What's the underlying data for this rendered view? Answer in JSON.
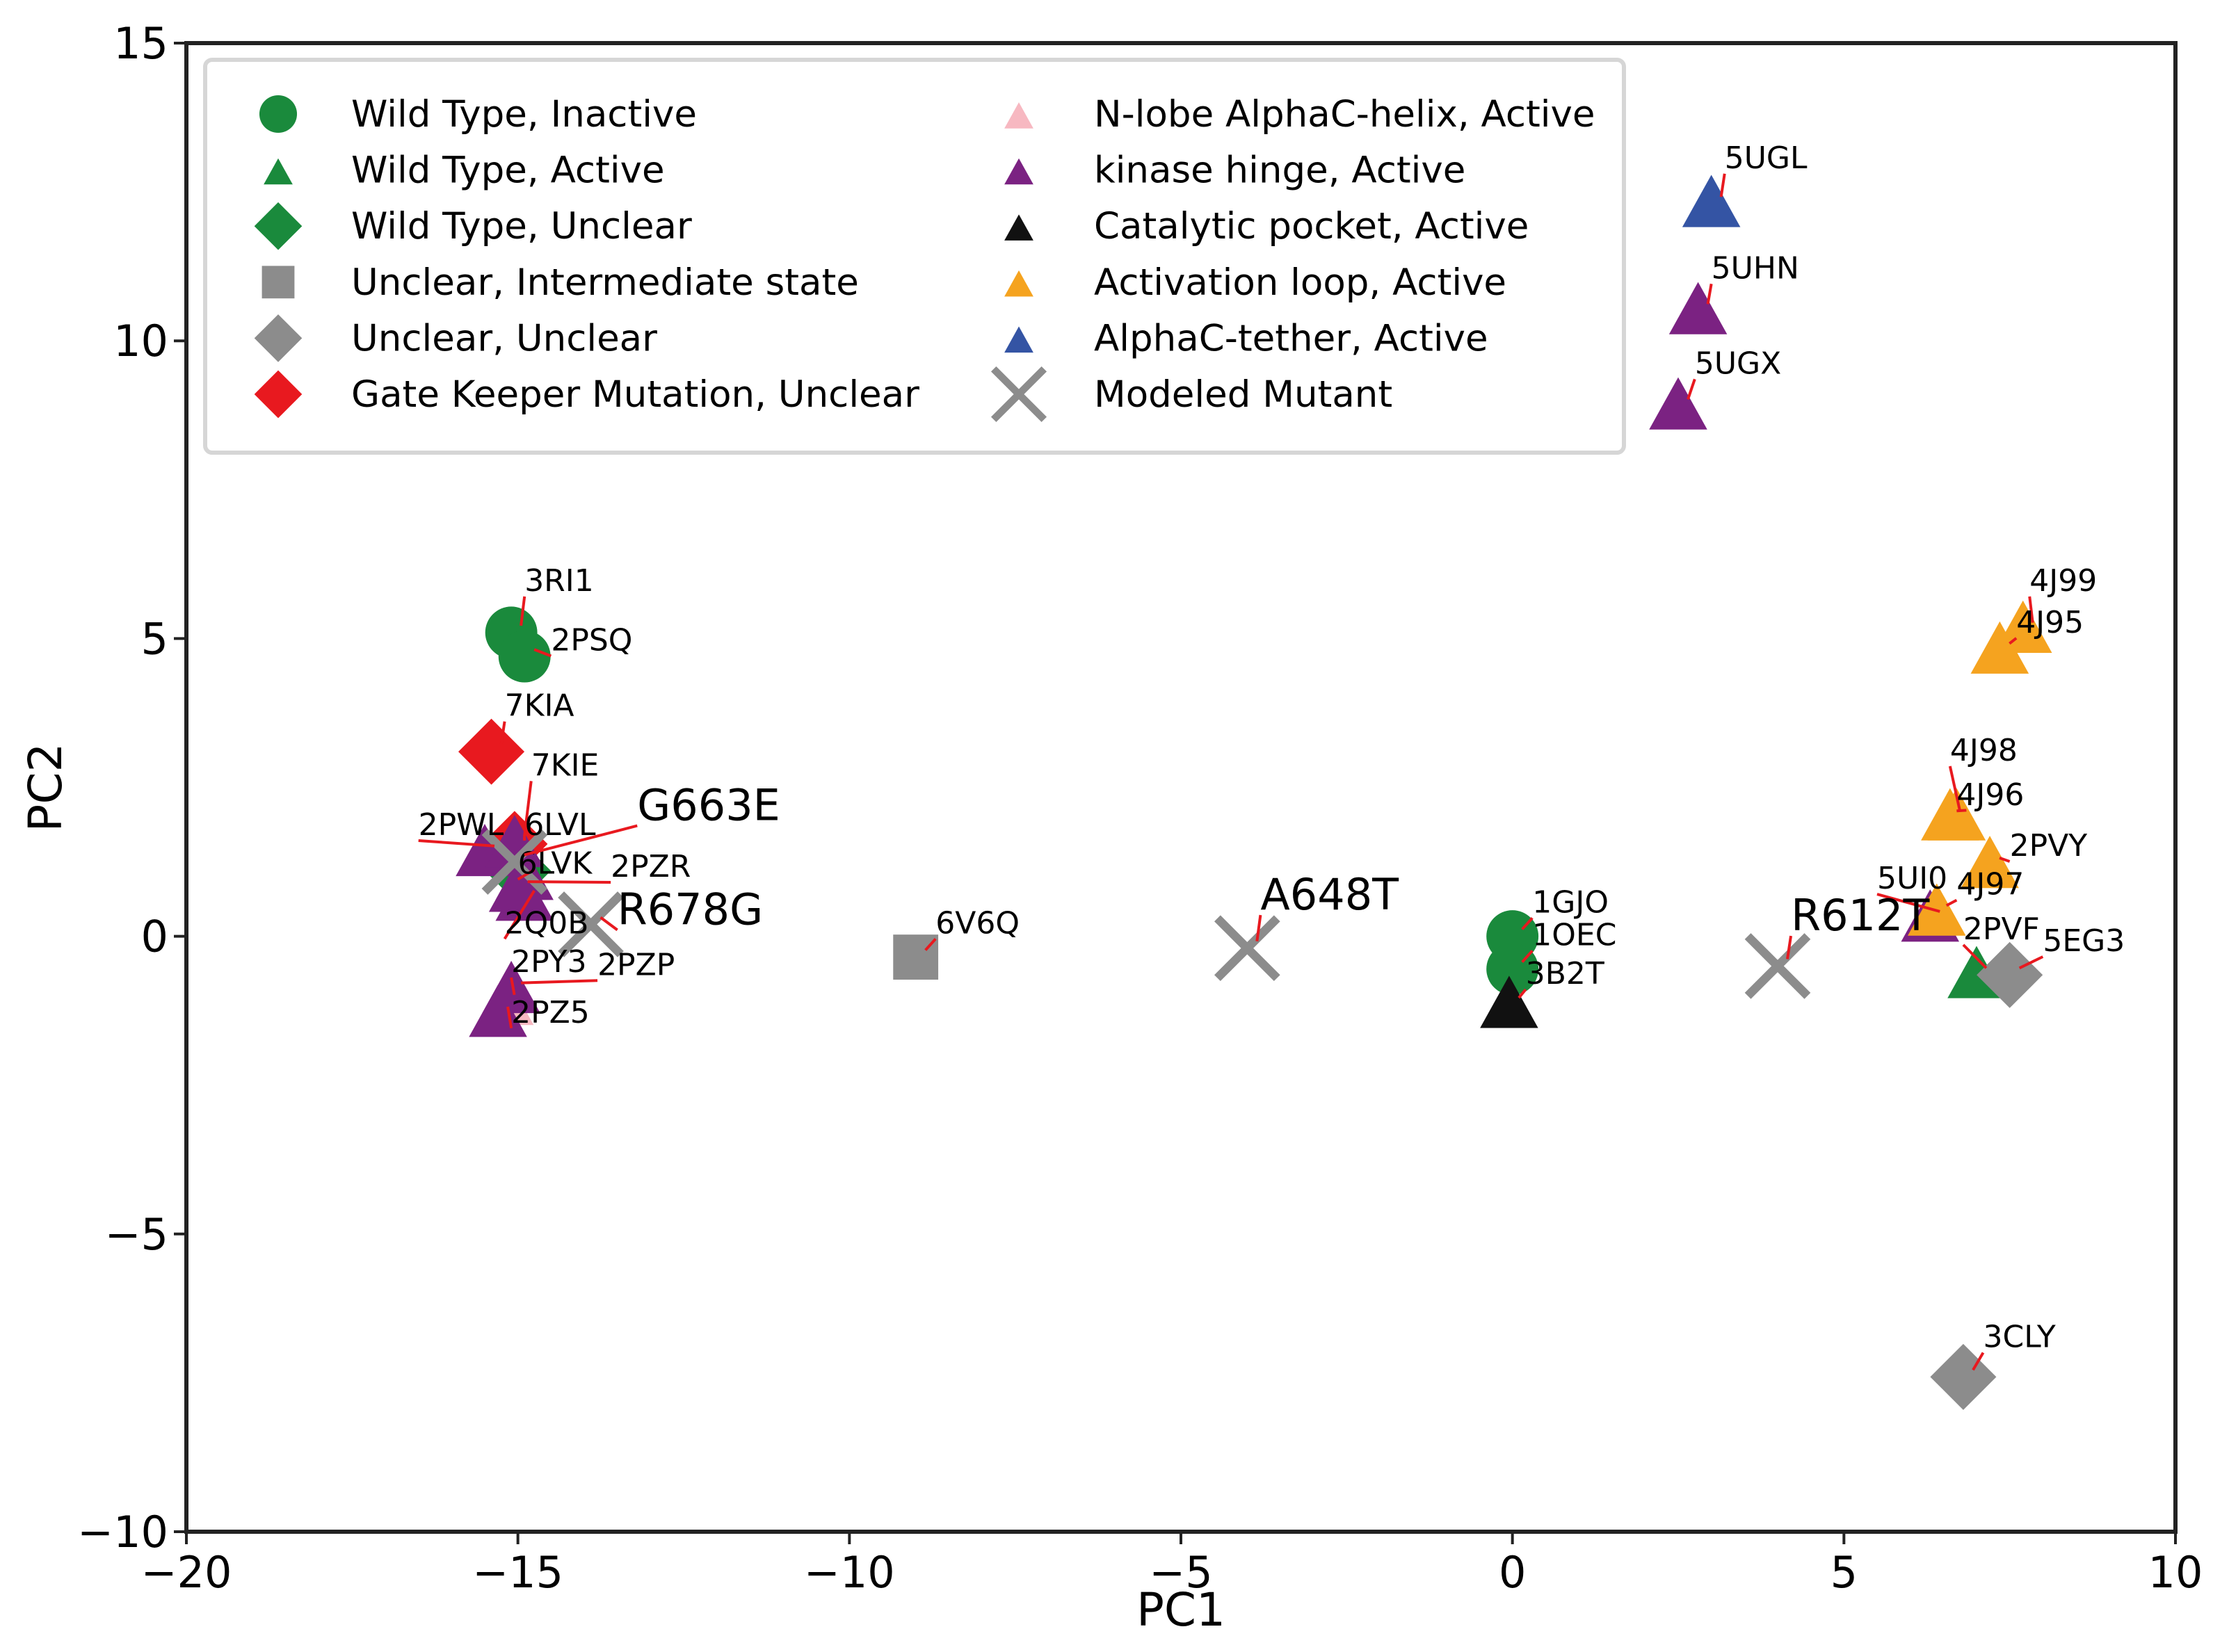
{
  "chart_data": {
    "type": "scatter",
    "title": "",
    "xlabel": "PC1",
    "ylabel": "PC2",
    "xlim": [
      -20,
      10
    ],
    "ylim": [
      -10,
      15
    ],
    "xticks": [
      -20,
      -15,
      -10,
      -5,
      0,
      5,
      10
    ],
    "yticks": [
      -10,
      -5,
      0,
      5,
      10,
      15
    ],
    "xtick_labels": [
      "−20",
      "−15",
      "−10",
      "−5",
      "0",
      "5",
      "10"
    ],
    "ytick_labels": [
      "−10",
      "−5",
      "0",
      "5",
      "10",
      "15"
    ],
    "grid": false,
    "legend_position": "upper-left",
    "colors": {
      "green": "#1a8a3c",
      "gray": "#8c8c8c",
      "red": "#e8191f",
      "pink": "#f7b8c1",
      "purple": "#7b2282",
      "black": "#111111",
      "orange": "#f5a31f",
      "blue": "#3454a4",
      "leader": "#e8191f"
    },
    "series": [
      {
        "name": "Wild Type, Inactive",
        "marker": "circle",
        "color": "#1a8a3c",
        "points": [
          {
            "x": -15.1,
            "y": 5.1,
            "label": "3RI1",
            "lx": -14.9,
            "ly": 5.8
          },
          {
            "x": -14.9,
            "y": 4.7,
            "label": "2PSQ",
            "lx": -14.5,
            "ly": 4.8
          },
          {
            "x": 0.0,
            "y": 0.0,
            "label": "1GJO",
            "lx": 0.3,
            "ly": 0.4
          },
          {
            "x": 0.0,
            "y": -0.55,
            "label": "1OEC",
            "lx": 0.3,
            "ly": -0.15
          }
        ]
      },
      {
        "name": "Wild Type, Active",
        "marker": "triangle",
        "color": "#1a8a3c",
        "points": [
          {
            "x": 7.0,
            "y": -0.65,
            "label": "2PVF",
            "lx": 6.8,
            "ly": -0.05
          }
        ]
      },
      {
        "name": "Wild Type, Unclear",
        "marker": "diamond",
        "color": "#1a8a3c",
        "points": [
          {
            "x": -15.0,
            "y": 1.1,
            "label": "",
            "lx": null,
            "ly": null
          }
        ]
      },
      {
        "name": "Unclear, Intermediate state",
        "marker": "square",
        "color": "#8c8c8c",
        "points": [
          {
            "x": -9.0,
            "y": -0.35,
            "label": "6V6Q",
            "lx": -8.7,
            "ly": 0.05
          }
        ]
      },
      {
        "name": "Unclear, Unclear",
        "marker": "diamond",
        "color": "#8c8c8c",
        "points": [
          {
            "x": 7.5,
            "y": -0.65,
            "label": "5EG3",
            "lx": 8.0,
            "ly": -0.25
          },
          {
            "x": 6.8,
            "y": -7.4,
            "label": "3CLY",
            "lx": 7.1,
            "ly": -6.9
          }
        ]
      },
      {
        "name": "Gate Keeper Mutation, Unclear",
        "marker": "diamond",
        "color": "#e8191f",
        "points": [
          {
            "x": -15.4,
            "y": 3.1,
            "label": "7KIA",
            "lx": -15.2,
            "ly": 3.7
          },
          {
            "x": -15.05,
            "y": 1.55,
            "label": "7KIE",
            "lx": -14.8,
            "ly": 2.7
          }
        ]
      },
      {
        "name": "N-lobe AlphaC-helix, Active",
        "marker": "triangle",
        "color": "#f7b8c1",
        "points": [
          {
            "x": -15.2,
            "y": -1.1,
            "label": "2PY3",
            "lx": -15.1,
            "ly": -0.6
          }
        ]
      },
      {
        "name": "kinase hinge, Active",
        "marker": "triangle",
        "color": "#7b2282",
        "points": [
          {
            "x": -15.5,
            "y": 1.4,
            "label": "2PWL",
            "lx": -16.5,
            "ly": 1.7
          },
          {
            "x": -15.05,
            "y": 1.55,
            "label": "6LVL",
            "lx": -14.9,
            "ly": 1.7
          },
          {
            "x": -14.9,
            "y": 0.65,
            "label": "2Q0B",
            "lx": -15.2,
            "ly": 0.05
          },
          {
            "x": -15.3,
            "y": -1.3,
            "label": "2PZ5",
            "lx": -15.1,
            "ly": -1.45
          },
          {
            "x": -15.1,
            "y": -0.9,
            "label": "2PZP",
            "lx": -13.8,
            "ly": -0.65
          },
          {
            "x": -14.9,
            "y": 1.0,
            "label": "6LVK",
            "lx": -15.0,
            "ly": 1.05
          },
          {
            "x": -15.0,
            "y": 0.8,
            "label": "2PZR",
            "lx": -13.6,
            "ly": 1.0
          },
          {
            "x": 2.8,
            "y": 10.5,
            "label": "5UHN",
            "lx": 3.0,
            "ly": 11.05
          },
          {
            "x": 2.5,
            "y": 8.9,
            "label": "5UGX",
            "lx": 2.75,
            "ly": 9.45
          },
          {
            "x": 6.3,
            "y": 0.3,
            "label": "5UI0",
            "lx": 5.5,
            "ly": 0.8
          }
        ]
      },
      {
        "name": "Catalytic pocket, Active",
        "marker": "triangle",
        "color": "#111111",
        "points": [
          {
            "x": -0.05,
            "y": -1.15,
            "label": "3B2T",
            "lx": 0.2,
            "ly": -0.8
          }
        ]
      },
      {
        "name": "Activation loop, Active",
        "marker": "triangle",
        "color": "#f5a31f",
        "points": [
          {
            "x": 7.7,
            "y": 5.15,
            "label": "4J99",
            "lx": 7.8,
            "ly": 5.8
          },
          {
            "x": 7.35,
            "y": 4.8,
            "label": "4J95",
            "lx": 7.6,
            "ly": 5.1
          },
          {
            "x": 6.6,
            "y": 2.0,
            "label": "4J98",
            "lx": 6.6,
            "ly": 2.95
          },
          {
            "x": 6.7,
            "y": 2.0,
            "label": "4J96",
            "lx": 6.7,
            "ly": 2.2
          },
          {
            "x": 7.2,
            "y": 1.2,
            "label": "2PVY",
            "lx": 7.5,
            "ly": 1.35
          },
          {
            "x": 6.4,
            "y": 0.4,
            "label": "4J97",
            "lx": 6.7,
            "ly": 0.7
          }
        ]
      },
      {
        "name": "AlphaC-tether, Active",
        "marker": "triangle",
        "color": "#3454a4",
        "points": [
          {
            "x": 3.0,
            "y": 12.3,
            "label": "5UGL",
            "lx": 3.2,
            "ly": 12.9
          }
        ]
      },
      {
        "name": "Modeled Mutant",
        "marker": "x",
        "color": "#8c8c8c",
        "points": [
          {
            "x": -15.05,
            "y": 1.25,
            "label": "G663E",
            "lx": -13.2,
            "ly": 1.95,
            "big": true
          },
          {
            "x": -13.9,
            "y": 0.2,
            "label": "R678G",
            "lx": -13.5,
            "ly": 0.2,
            "big": true
          },
          {
            "x": -4.0,
            "y": -0.2,
            "label": "A648T",
            "lx": -3.8,
            "ly": 0.45,
            "big": true
          },
          {
            "x": 4.0,
            "y": -0.5,
            "label": "R612T",
            "lx": 4.2,
            "ly": 0.1,
            "big": true
          }
        ]
      }
    ],
    "legend_entries": [
      "Wild Type, Inactive",
      "Wild Type, Active",
      "Wild Type, Unclear",
      "Unclear, Intermediate state",
      "Unclear, Unclear",
      "Gate Keeper Mutation, Unclear",
      "N-lobe AlphaC-helix, Active",
      "kinase hinge, Active",
      "Catalytic pocket, Active",
      "Activation loop, Active",
      "AlphaC-tether, Active",
      "Modeled Mutant"
    ]
  }
}
